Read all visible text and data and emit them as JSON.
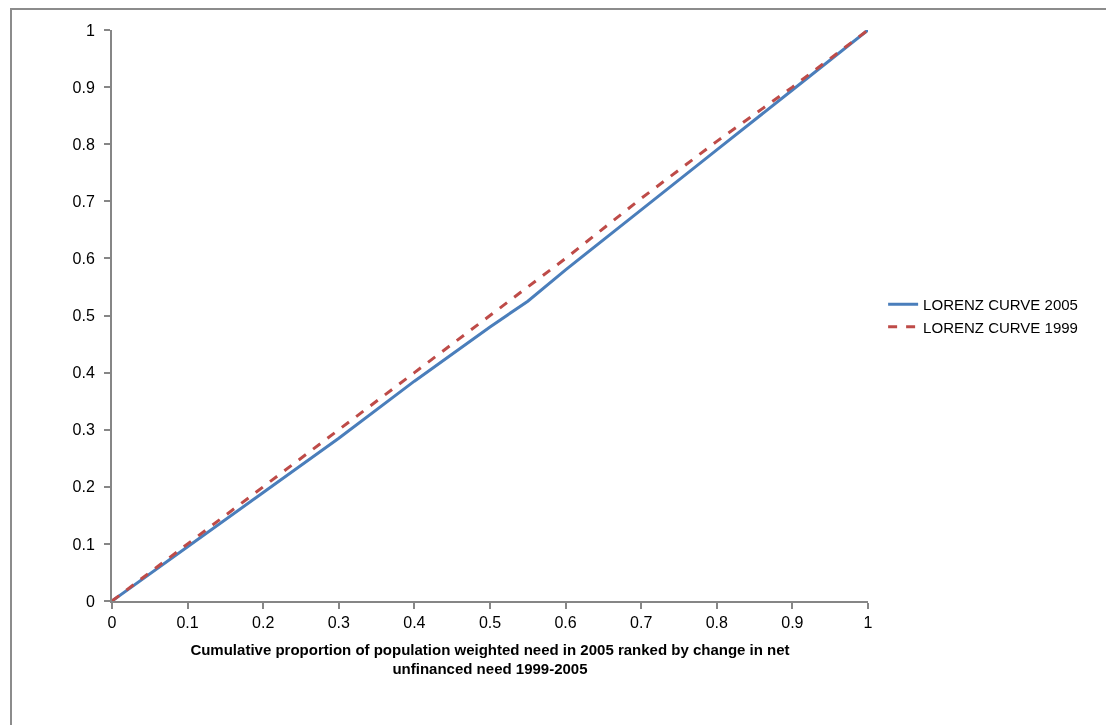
{
  "chart_data": {
    "type": "line",
    "xlabel": "Cumulative proportion of population weighted need in 2005 ranked by change in net unfinanced need 1999-2005",
    "x": [
      0,
      0.1,
      0.2,
      0.3,
      0.4,
      0.5,
      0.55,
      0.6,
      0.7,
      0.8,
      0.9,
      1
    ],
    "series": [
      {
        "name": "LORENZ CURVE 2005",
        "color": "#4a7ebb",
        "line_style": "solid",
        "values": [
          0,
          0.095,
          0.19,
          0.285,
          0.385,
          0.48,
          0.525,
          0.58,
          0.685,
          0.79,
          0.895,
          1
        ]
      },
      {
        "name": "LORENZ CURVE 1999",
        "color": "#be4b48",
        "line_style": "dashed",
        "values": [
          0,
          0.1,
          0.2,
          0.3,
          0.4,
          0.5,
          0.55,
          0.6,
          0.705,
          0.805,
          0.9,
          1
        ]
      }
    ],
    "xlim": [
      0,
      1
    ],
    "xticks": [
      0,
      0.1,
      0.2,
      0.3,
      0.4,
      0.5,
      0.6,
      0.7,
      0.8,
      0.9,
      1
    ],
    "ylim": [
      0,
      1
    ],
    "yticks": [
      0,
      0.1,
      0.2,
      0.3,
      0.4,
      0.5,
      0.6,
      0.7,
      0.8,
      0.9,
      1
    ],
    "grid": false,
    "legend": "right",
    "marker": "none"
  }
}
